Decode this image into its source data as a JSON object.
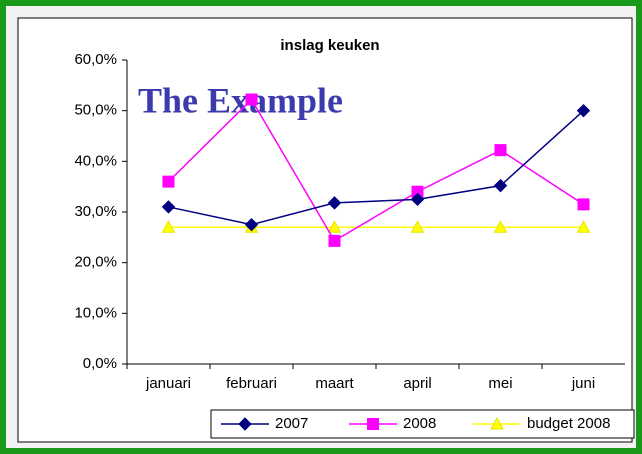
{
  "chart_data": {
    "type": "line",
    "title": "inslag keuken",
    "watermark": "The Example",
    "categories": [
      "januari",
      "februari",
      "maart",
      "april",
      "mei",
      "juni"
    ],
    "series": [
      {
        "name": "2007",
        "color": "#000080",
        "marker": "diamond",
        "values": [
          31,
          27.5,
          31.8,
          32.5,
          35.2,
          50
        ]
      },
      {
        "name": "2008",
        "color": "#ff00ff",
        "marker": "square",
        "values": [
          36,
          52.2,
          24.3,
          34,
          42.2,
          31.5
        ]
      },
      {
        "name": "budget 2008",
        "color": "#ffff00",
        "marker": "triangle",
        "values": [
          27,
          27,
          27,
          27,
          27,
          27
        ]
      }
    ],
    "ylim": [
      0,
      60
    ],
    "yticks": [
      {
        "value": 0,
        "label": "0,0%"
      },
      {
        "value": 10,
        "label": "10,0%"
      },
      {
        "value": 20,
        "label": "20,0%"
      },
      {
        "value": 30,
        "label": "30,0%"
      },
      {
        "value": 40,
        "label": "40,0%"
      },
      {
        "value": 50,
        "label": "50,0%"
      },
      {
        "value": 60,
        "label": "60,0%"
      }
    ],
    "grid": false,
    "legend": "bottom"
  }
}
